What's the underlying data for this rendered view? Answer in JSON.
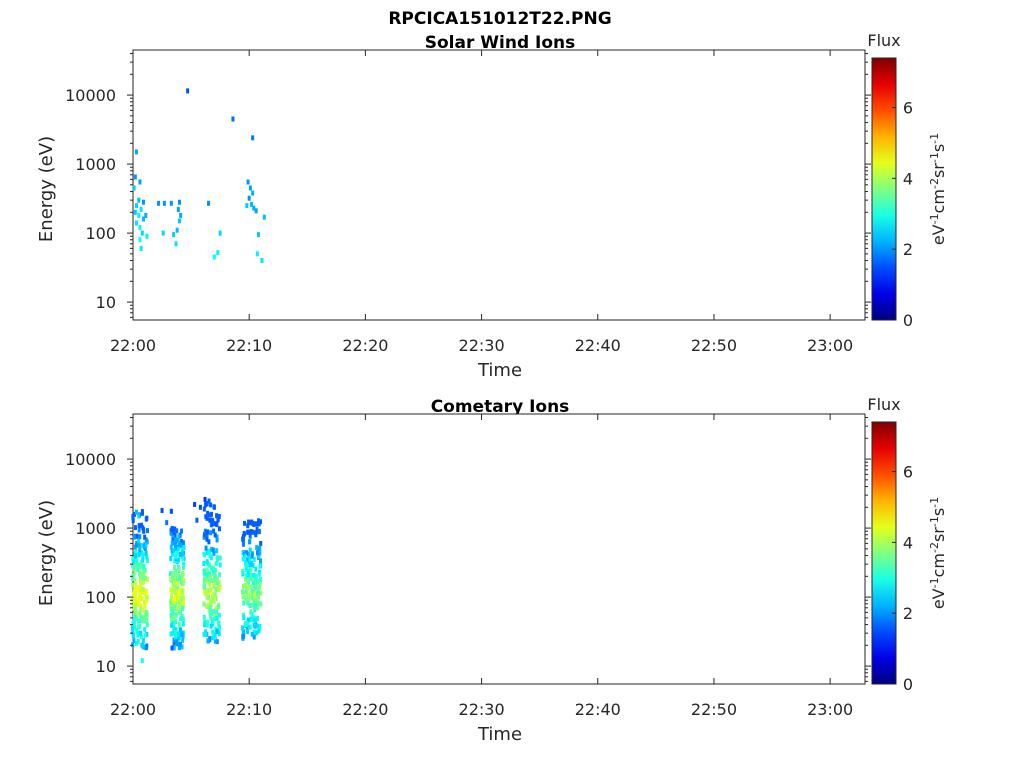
{
  "figure": {
    "title": "RPCICA151012T22.PNG"
  },
  "chart_data": [
    {
      "type": "heatmap",
      "title": "Solar Wind Ions",
      "xlabel": "Time",
      "ylabel": "Energy (eV)",
      "x_ticks": [
        "22:00",
        "22:10",
        "22:20",
        "22:30",
        "22:40",
        "22:50",
        "23:00"
      ],
      "x_range_minutes": [
        0,
        63
      ],
      "y_scale": "log",
      "y_ticks": [
        "10",
        "100",
        "1000",
        "10000"
      ],
      "y_range": [
        5.5,
        45000
      ],
      "colorbar": {
        "title": "Flux",
        "unit": "eV-1cm-2sr-1s-1",
        "range": [
          0,
          7.4
        ],
        "ticks": [
          "0",
          "2",
          "4",
          "6"
        ],
        "colormap": "jet"
      },
      "points": [
        {
          "t": 0.3,
          "e": 1500,
          "v": 2.2
        },
        {
          "t": 0.2,
          "e": 650,
          "v": 2.0
        },
        {
          "t": 0.6,
          "e": 550,
          "v": 2.1
        },
        {
          "t": 0.1,
          "e": 450,
          "v": 2.4
        },
        {
          "t": 0.5,
          "e": 300,
          "v": 2.3
        },
        {
          "t": 0.9,
          "e": 280,
          "v": 2.0
        },
        {
          "t": 0.3,
          "e": 250,
          "v": 2.5
        },
        {
          "t": 0.7,
          "e": 220,
          "v": 2.6
        },
        {
          "t": 0.2,
          "e": 200,
          "v": 2.4
        },
        {
          "t": 0.5,
          "e": 180,
          "v": 2.7
        },
        {
          "t": 0.9,
          "e": 160,
          "v": 2.3
        },
        {
          "t": 0.3,
          "e": 140,
          "v": 2.6
        },
        {
          "t": 0.6,
          "e": 120,
          "v": 2.8
        },
        {
          "t": 0.8,
          "e": 100,
          "v": 2.5
        },
        {
          "t": 0.6,
          "e": 80,
          "v": 2.8
        },
        {
          "t": 1.2,
          "e": 90,
          "v": 2.7
        },
        {
          "t": 0.7,
          "e": 60,
          "v": 2.6
        },
        {
          "t": 1.1,
          "e": 180,
          "v": 2.2
        },
        {
          "t": 2.2,
          "e": 270,
          "v": 2.0
        },
        {
          "t": 2.7,
          "e": 270,
          "v": 2.0
        },
        {
          "t": 3.3,
          "e": 270,
          "v": 2.0
        },
        {
          "t": 2.6,
          "e": 100,
          "v": 2.5
        },
        {
          "t": 3.5,
          "e": 95,
          "v": 2.4
        },
        {
          "t": 3.7,
          "e": 70,
          "v": 2.6
        },
        {
          "t": 3.9,
          "e": 220,
          "v": 2.1
        },
        {
          "t": 3.8,
          "e": 110,
          "v": 2.3
        },
        {
          "t": 4.0,
          "e": 280,
          "v": 2.0
        },
        {
          "t": 4.1,
          "e": 180,
          "v": 2.2
        },
        {
          "t": 4.0,
          "e": 150,
          "v": 2.4
        },
        {
          "t": 4.7,
          "e": 11500,
          "v": 1.5
        },
        {
          "t": 6.5,
          "e": 270,
          "v": 2.0
        },
        {
          "t": 7.0,
          "e": 45,
          "v": 2.8
        },
        {
          "t": 7.3,
          "e": 52,
          "v": 2.7
        },
        {
          "t": 7.5,
          "e": 100,
          "v": 2.5
        },
        {
          "t": 8.6,
          "e": 4500,
          "v": 1.7
        },
        {
          "t": 9.9,
          "e": 550,
          "v": 2.0
        },
        {
          "t": 10.1,
          "e": 450,
          "v": 2.1
        },
        {
          "t": 10.3,
          "e": 380,
          "v": 2.2
        },
        {
          "t": 10.0,
          "e": 320,
          "v": 2.0
        },
        {
          "t": 10.2,
          "e": 260,
          "v": 2.3
        },
        {
          "t": 10.4,
          "e": 230,
          "v": 2.2
        },
        {
          "t": 10.6,
          "e": 210,
          "v": 2.1
        },
        {
          "t": 9.8,
          "e": 250,
          "v": 2.4
        },
        {
          "t": 10.3,
          "e": 2400,
          "v": 1.8
        },
        {
          "t": 10.8,
          "e": 95,
          "v": 2.4
        },
        {
          "t": 10.7,
          "e": 50,
          "v": 2.7
        },
        {
          "t": 11.1,
          "e": 40,
          "v": 2.6
        },
        {
          "t": 11.3,
          "e": 170,
          "v": 2.3
        }
      ]
    },
    {
      "type": "heatmap",
      "title": "Cometary Ions",
      "xlabel": "Time",
      "ylabel": "Energy (eV)",
      "x_ticks": [
        "22:00",
        "22:10",
        "22:20",
        "22:30",
        "22:40",
        "22:50",
        "23:00"
      ],
      "x_range_minutes": [
        0,
        63
      ],
      "y_scale": "log",
      "y_ticks": [
        "10",
        "100",
        "1000",
        "10000"
      ],
      "y_range": [
        5.5,
        45000
      ],
      "colorbar": {
        "title": "Flux",
        "unit": "eV-1cm-2sr-1s-1",
        "range": [
          0,
          7.4
        ],
        "ticks": [
          "0",
          "2",
          "4",
          "6"
        ],
        "colormap": "jet"
      },
      "clusters": [
        {
          "t_center": 0.6,
          "t_width": 1.3,
          "e_low": 18,
          "e_high": 1800,
          "v_peak": 4.5
        },
        {
          "t_center": 3.8,
          "t_width": 1.2,
          "e_low": 18,
          "e_high": 1000,
          "v_peak": 4.3
        },
        {
          "t_center": 6.8,
          "t_width": 1.4,
          "e_low": 22,
          "e_high": 2500,
          "v_peak": 4.2
        },
        {
          "t_center": 10.2,
          "t_width": 1.6,
          "e_low": 25,
          "e_high": 1300,
          "v_peak": 3.8
        }
      ],
      "extra_points": [
        {
          "t": 2.5,
          "e": 1800,
          "v": 1.5
        },
        {
          "t": 3.3,
          "e": 1750,
          "v": 1.5
        },
        {
          "t": 2.9,
          "e": 1200,
          "v": 1.8
        },
        {
          "t": 5.3,
          "e": 2200,
          "v": 1.4
        },
        {
          "t": 5.8,
          "e": 2000,
          "v": 1.5
        },
        {
          "t": 6.2,
          "e": 2600,
          "v": 1.3
        },
        {
          "t": 5.5,
          "e": 1300,
          "v": 1.6
        },
        {
          "t": 0.3,
          "e": 1700,
          "v": 2.3
        },
        {
          "t": 0.5,
          "e": 1500,
          "v": 2.5
        },
        {
          "t": 0.8,
          "e": 12,
          "v": 2.9
        }
      ]
    }
  ]
}
